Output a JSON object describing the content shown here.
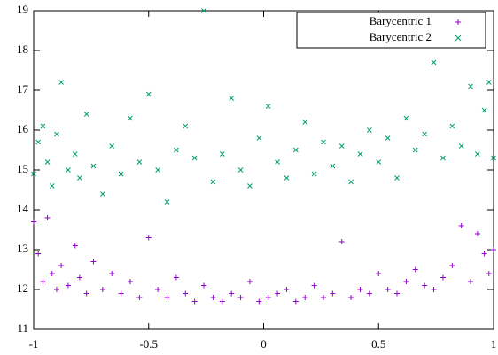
{
  "chart_data": {
    "type": "scatter",
    "series": [
      {
        "name": "Barycentric 1",
        "color": "#9400d3",
        "marker": "plus",
        "x": [
          -1,
          -0.98,
          -0.96,
          -0.94,
          -0.92,
          -0.9,
          -0.88,
          -0.85,
          -0.82,
          -0.8,
          -0.77,
          -0.74,
          -0.7,
          -0.66,
          -0.62,
          -0.58,
          -0.54,
          -0.5,
          -0.46,
          -0.42,
          -0.38,
          -0.34,
          -0.3,
          -0.26,
          -0.22,
          -0.18,
          -0.14,
          -0.1,
          -0.06,
          -0.02,
          0.02,
          0.06,
          0.1,
          0.14,
          0.18,
          0.22,
          0.26,
          0.3,
          0.34,
          0.38,
          0.42,
          0.46,
          0.5,
          0.54,
          0.58,
          0.62,
          0.66,
          0.7,
          0.74,
          0.78,
          0.82,
          0.86,
          0.9,
          0.93,
          0.96,
          0.98,
          1
        ],
        "values": [
          13.7,
          12.9,
          12.2,
          13.8,
          12.4,
          12.0,
          12.6,
          12.1,
          13.1,
          12.3,
          11.9,
          12.7,
          12.0,
          12.4,
          11.9,
          12.2,
          11.8,
          13.3,
          12.0,
          11.8,
          12.3,
          11.9,
          11.7,
          12.1,
          11.8,
          11.7,
          11.9,
          11.8,
          12.2,
          11.7,
          11.8,
          11.9,
          12.0,
          11.7,
          11.8,
          12.1,
          11.8,
          11.9,
          13.2,
          11.8,
          12.0,
          11.9,
          12.4,
          12.0,
          11.9,
          12.2,
          12.5,
          12.1,
          12.0,
          12.3,
          12.6,
          13.6,
          12.2,
          13.4,
          12.9,
          12.4,
          13.0
        ]
      },
      {
        "name": "Barycentric 2",
        "color": "#009e73",
        "marker": "cross",
        "x": [
          -1,
          -0.98,
          -0.96,
          -0.94,
          -0.92,
          -0.9,
          -0.88,
          -0.85,
          -0.82,
          -0.8,
          -0.77,
          -0.74,
          -0.7,
          -0.66,
          -0.62,
          -0.58,
          -0.54,
          -0.5,
          -0.46,
          -0.42,
          -0.38,
          -0.34,
          -0.3,
          -0.26,
          -0.22,
          -0.18,
          -0.14,
          -0.1,
          -0.06,
          -0.02,
          0.02,
          0.06,
          0.1,
          0.14,
          0.18,
          0.22,
          0.26,
          0.3,
          0.34,
          0.38,
          0.42,
          0.46,
          0.5,
          0.54,
          0.58,
          0.62,
          0.66,
          0.7,
          0.74,
          0.78,
          0.82,
          0.86,
          0.9,
          0.93,
          0.96,
          0.98,
          1
        ],
        "values": [
          14.9,
          15.7,
          16.1,
          15.2,
          14.6,
          15.9,
          17.2,
          15.0,
          15.4,
          14.8,
          16.4,
          15.1,
          14.4,
          15.6,
          14.9,
          16.3,
          15.2,
          16.9,
          15.0,
          14.2,
          15.5,
          16.1,
          15.3,
          19.0,
          14.7,
          15.4,
          16.8,
          15.0,
          14.6,
          15.8,
          16.6,
          15.2,
          14.8,
          15.5,
          16.2,
          14.9,
          15.7,
          15.1,
          15.6,
          14.7,
          15.4,
          16.0,
          15.2,
          15.8,
          14.8,
          16.3,
          15.5,
          15.9,
          17.7,
          15.3,
          16.1,
          15.6,
          17.1,
          15.4,
          16.5,
          17.2,
          15.3
        ]
      }
    ],
    "xlim": [
      -1,
      1
    ],
    "xticks": [
      -1,
      -0.5,
      0,
      0.5,
      1
    ],
    "ylim": [
      11,
      19
    ],
    "yticks": [
      11,
      12,
      13,
      14,
      15,
      16,
      17,
      18,
      19
    ],
    "grid": false,
    "legend": "top-right"
  }
}
